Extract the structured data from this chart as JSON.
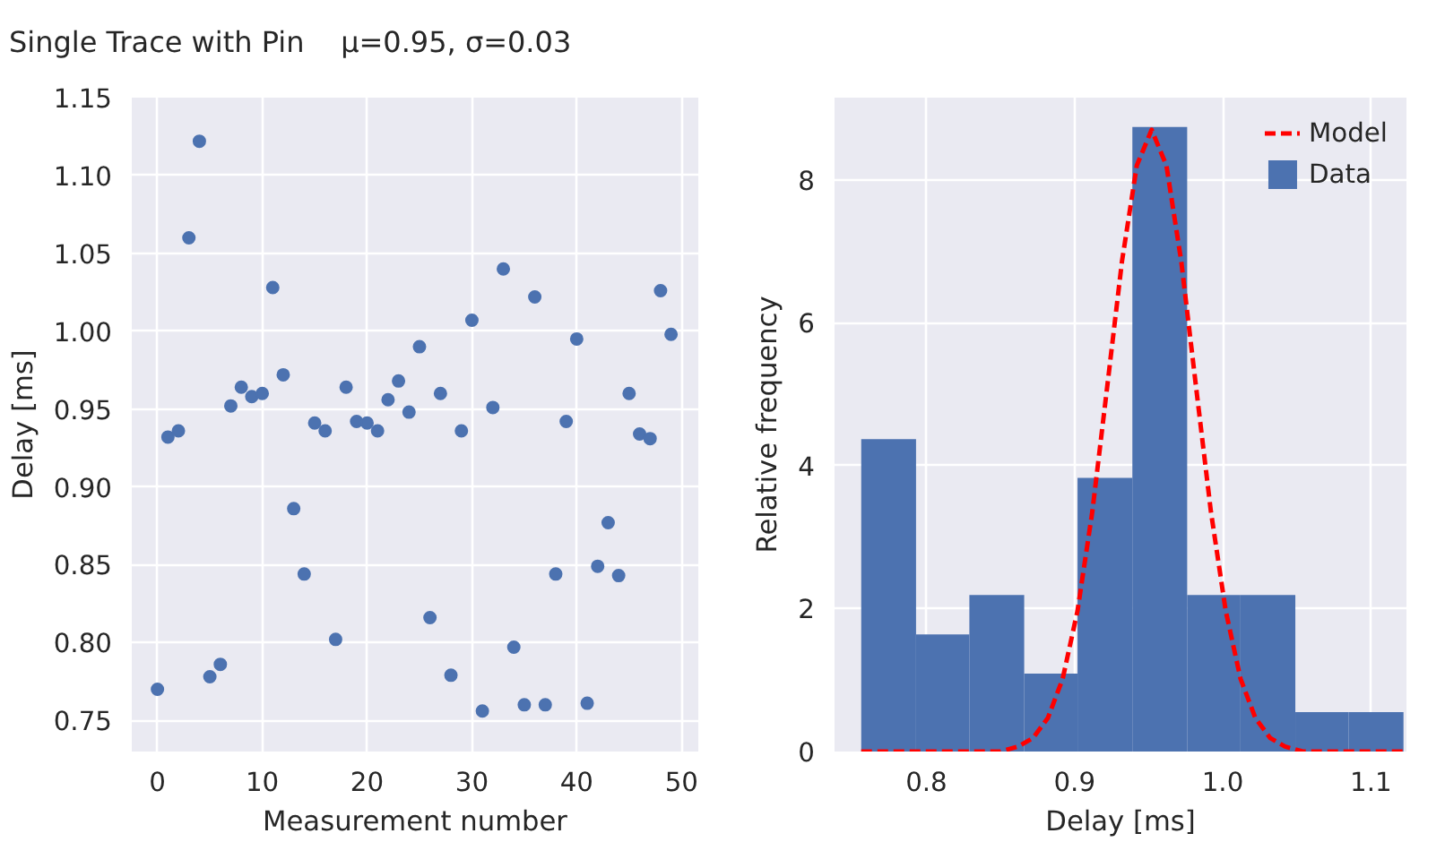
{
  "chart_data": [
    {
      "type": "scatter",
      "title": "Single Trace with Pin    μ=0.95, σ=0.03",
      "xlabel": "Measurement number",
      "ylabel": "Delay [ms]",
      "grid": true,
      "marker": "circle",
      "legend": false,
      "x": [
        0,
        1,
        2,
        3,
        4,
        5,
        6,
        7,
        8,
        9,
        10,
        11,
        12,
        13,
        14,
        15,
        16,
        17,
        18,
        19,
        20,
        21,
        22,
        23,
        24,
        25,
        26,
        27,
        28,
        29,
        30,
        31,
        32,
        33,
        34,
        35,
        36,
        37,
        38,
        39,
        40,
        41,
        42,
        43,
        44,
        45,
        46,
        47,
        48,
        49
      ],
      "series": [
        {
          "color": "#4c72b0",
          "values": [
            0.77,
            0.932,
            0.936,
            1.06,
            1.122,
            0.778,
            0.786,
            0.952,
            0.964,
            0.958,
            0.96,
            1.028,
            0.972,
            0.886,
            0.844,
            0.941,
            0.936,
            0.802,
            0.964,
            0.942,
            0.941,
            0.936,
            0.956,
            0.968,
            0.948,
            0.99,
            0.816,
            0.96,
            0.779,
            0.936,
            1.007,
            0.756,
            0.951,
            1.04,
            0.797,
            0.76,
            1.022,
            0.76,
            0.844,
            0.942,
            0.995,
            0.761,
            0.849,
            0.877,
            0.843,
            0.96,
            0.934,
            0.931,
            1.026,
            0.998
          ]
        }
      ],
      "xlim": [
        -2.45,
        51.6
      ],
      "xticks": [
        0,
        10,
        20,
        30,
        40,
        50
      ],
      "ylim": [
        0.73,
        1.15
      ],
      "yticks": [
        {
          "value": 0.75,
          "label": "0.75"
        },
        {
          "value": 0.8,
          "label": "0.80"
        },
        {
          "value": 0.85,
          "label": "0.85"
        },
        {
          "value": 0.9,
          "label": "0.90"
        },
        {
          "value": 0.95,
          "label": "0.95"
        },
        {
          "value": 1.0,
          "label": "1.00"
        },
        {
          "value": 1.05,
          "label": "1.05"
        },
        {
          "value": 1.1,
          "label": "1.10"
        },
        {
          "value": 1.15,
          "label": "1.15"
        }
      ]
    },
    {
      "type": "histogram",
      "xlabel": "Delay [ms]",
      "ylabel": "Relative frequency",
      "grid": true,
      "legend": "top right",
      "series": [
        {
          "name": "Data",
          "type": "histogram",
          "color": "#4c72b0",
          "bins": [
            0.756,
            0.793,
            0.829,
            0.866,
            0.902,
            0.939,
            0.976,
            1.012,
            1.049,
            1.085,
            1.122
          ],
          "values": [
            4.37,
            1.64,
            2.19,
            1.09,
            3.83,
            8.74,
            2.19,
            2.19,
            0.55,
            0.55
          ]
        },
        {
          "name": "Model",
          "type": "line",
          "color": "#ff0000",
          "line_style": "dashed",
          "x": [
            0.756,
            0.85,
            0.862,
            0.872,
            0.882,
            0.892,
            0.902,
            0.912,
            0.922,
            0.932,
            0.942,
            0.952,
            0.962,
            0.972,
            0.982,
            0.992,
            1.002,
            1.012,
            1.022,
            1.032,
            1.042,
            1.054,
            1.122
          ],
          "values": [
            0,
            0,
            0.07,
            0.19,
            0.47,
            1.02,
            1.97,
            3.36,
            5.1,
            6.86,
            8.2,
            8.7,
            8.2,
            6.86,
            5.1,
            3.36,
            1.97,
            1.02,
            0.47,
            0.19,
            0.07,
            0,
            0
          ]
        }
      ],
      "xlim": [
        0.738,
        1.124
      ],
      "xticks": [
        {
          "value": 0.8,
          "label": "0.8"
        },
        {
          "value": 0.9,
          "label": "0.9"
        },
        {
          "value": 1.0,
          "label": "1.0"
        },
        {
          "value": 1.1,
          "label": "1.1"
        }
      ],
      "ylim": [
        0,
        9.15
      ],
      "yticks": [
        0,
        2,
        4,
        6,
        8
      ]
    }
  ]
}
